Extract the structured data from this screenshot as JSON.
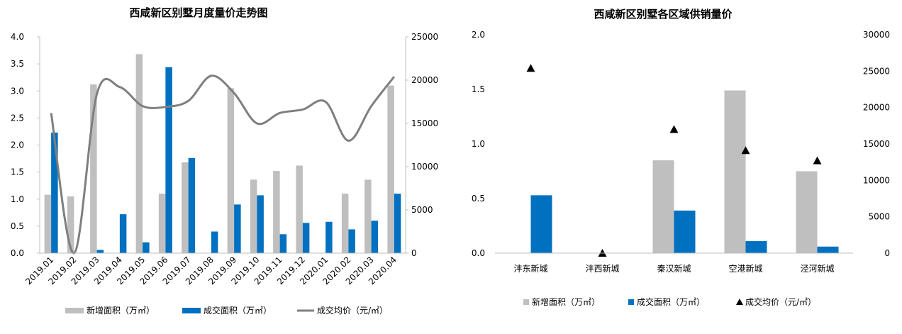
{
  "chart_data": [
    {
      "type": "bar",
      "title": "西咸新区别墅月度量价走势图",
      "categories": [
        "2019.01",
        "2019.02",
        "2019.03",
        "2019.04",
        "2019.05",
        "2019.06",
        "2019.07",
        "2019.08",
        "2019.09",
        "2019.10",
        "2019.11",
        "2019.12",
        "2020.01",
        "2020.02",
        "2020.03",
        "2020.04"
      ],
      "series": [
        {
          "name": "新增面积（万㎡）",
          "type": "bar",
          "axis": "left",
          "color": "#BFBFBF",
          "values": [
            1.08,
            1.05,
            3.12,
            null,
            3.68,
            1.1,
            1.68,
            null,
            3.05,
            1.36,
            1.52,
            1.62,
            null,
            1.1,
            1.36,
            3.1
          ]
        },
        {
          "name": "成交面积（万㎡）",
          "type": "bar",
          "axis": "left",
          "color": "#0070C0",
          "values": [
            2.23,
            null,
            0.06,
            0.72,
            0.2,
            3.44,
            1.76,
            0.4,
            0.9,
            1.07,
            0.35,
            0.56,
            0.58,
            0.44,
            0.6,
            1.1
          ]
        },
        {
          "name": "成交均价（元/㎡）",
          "type": "line",
          "axis": "right",
          "color": "#7F7F7F",
          "values": [
            16200,
            0,
            18400,
            19200,
            17000,
            16900,
            17600,
            20500,
            18500,
            15000,
            16200,
            16600,
            17500,
            13000,
            17000,
            20400
          ]
        }
      ],
      "y_left": {
        "min": 0,
        "max": 4,
        "step": 0.5,
        "ticks": [
          "0.0",
          "0.5",
          "1.0",
          "1.5",
          "2.0",
          "2.5",
          "3.0",
          "3.5",
          "4.0"
        ]
      },
      "y_right": {
        "min": 0,
        "max": 25000,
        "step": 5000,
        "ticks": [
          "0",
          "5000",
          "10000",
          "15000",
          "20000",
          "25000"
        ]
      },
      "legend_position": "bottom",
      "grid": false
    },
    {
      "type": "bar",
      "title": "西咸新区别墅各区域供销量价",
      "categories": [
        "沣东新城",
        "沣西新城",
        "秦汉新城",
        "空港新城",
        "泾河新城"
      ],
      "series": [
        {
          "name": "新增面积（万㎡）",
          "type": "bar",
          "axis": "left",
          "color": "#BFBFBF",
          "values": [
            null,
            null,
            0.85,
            1.49,
            0.75
          ]
        },
        {
          "name": "成交面积（万㎡）",
          "type": "bar",
          "axis": "left",
          "color": "#0070C0",
          "values": [
            0.53,
            null,
            0.39,
            0.11,
            0.06
          ]
        },
        {
          "name": "成交均价（元/㎡）",
          "type": "scatter",
          "axis": "right",
          "color": "#000000",
          "marker": "triangle",
          "values": [
            25400,
            0,
            17000,
            14100,
            12700
          ]
        }
      ],
      "y_left": {
        "min": 0,
        "max": 2,
        "step": 0.5,
        "ticks": [
          "0.0",
          "0.5",
          "1.0",
          "1.5",
          "2.0"
        ]
      },
      "y_right": {
        "min": 0,
        "max": 30000,
        "step": 5000,
        "ticks": [
          "0",
          "5000",
          "10000",
          "15000",
          "20000",
          "25000",
          "30000"
        ]
      },
      "legend_position": "bottom",
      "grid": false
    }
  ]
}
